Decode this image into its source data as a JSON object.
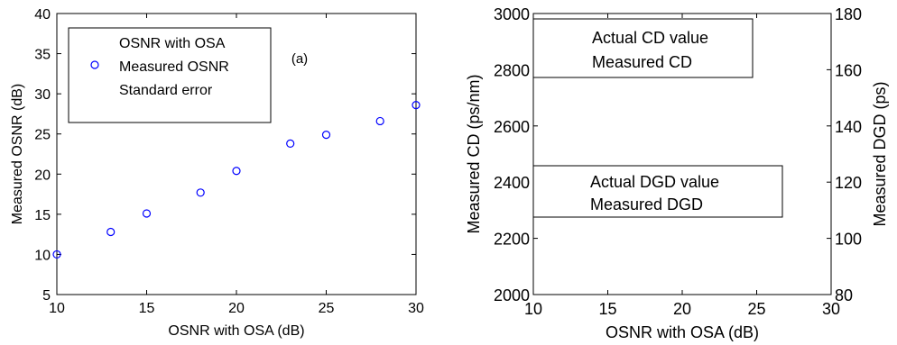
{
  "colors": {
    "axis": "#000000",
    "marker": "#0000ff",
    "background": "#ffffff"
  },
  "chart_data": [
    {
      "type": "scatter",
      "xlabel": "OSNR with OSA (dB)",
      "ylabel": "Measured OSNR (dB)",
      "annotation": "(a)",
      "xlim": [
        10,
        30
      ],
      "ylim": [
        5,
        40
      ],
      "xticks": [
        10,
        15,
        20,
        25,
        30
      ],
      "yticks": [
        5,
        10,
        15,
        20,
        25,
        30,
        35,
        40
      ],
      "grid": false,
      "legend_position": "top-left",
      "legend": [
        "OSNR with OSA",
        "Measured OSNR",
        "Standard error"
      ],
      "series": [
        {
          "name": "Measured OSNR",
          "marker": "circle",
          "x": [
            10,
            13,
            15,
            18,
            20,
            23,
            25,
            28,
            30
          ],
          "y": [
            10.0,
            12.8,
            15.1,
            17.7,
            20.4,
            23.8,
            24.9,
            26.6,
            28.6
          ]
        }
      ]
    },
    {
      "type": "scatter",
      "xlabel": "OSNR with OSA (dB)",
      "ylabel": "Measured CD (ps/nm)",
      "y2label": "Measured DGD (ps)",
      "xlim": [
        10,
        30
      ],
      "ylim": [
        2000,
        3000
      ],
      "y2lim": [
        80,
        180
      ],
      "xticks": [
        10,
        15,
        20,
        25,
        30
      ],
      "yticks": [
        2000,
        2200,
        2400,
        2600,
        2800,
        3000
      ],
      "y2ticks": [
        80,
        100,
        120,
        140,
        160,
        180
      ],
      "grid": false,
      "legends": [
        {
          "position": "top-left",
          "entries": [
            "Actual CD value",
            "Measured CD"
          ]
        },
        {
          "position": "middle-left",
          "entries": [
            "Actual DGD value",
            "Measured DGD"
          ]
        }
      ],
      "series": []
    }
  ]
}
